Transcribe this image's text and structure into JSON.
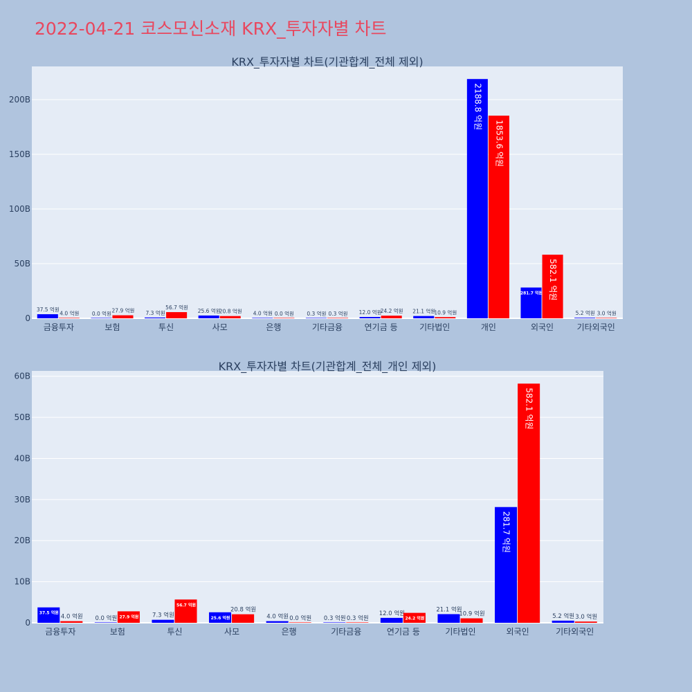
{
  "page": {
    "title": "2022-04-21 코스모신소재 KRX_투자자별 차트"
  },
  "colors": {
    "background": "#b0c4de",
    "plot_bg": "#e5ecf6",
    "series1": "#0000ff",
    "series2": "#ff0000",
    "title": "#e8475e"
  },
  "chart_data": [
    {
      "type": "bar",
      "title": "KRX_투자자별 차트(기관합계_전체 제외)",
      "categories": [
        "금융투자",
        "보험",
        "투신",
        "사모",
        "은행",
        "기타금융",
        "연기금 등",
        "기타법인",
        "개인",
        "외국인",
        "기타외국인"
      ],
      "series": [
        {
          "values": [
            3.75,
            0.0,
            0.73,
            2.56,
            0.4,
            0.03,
            1.2,
            2.11,
            218.88,
            28.17,
            0.52
          ],
          "labels": [
            "37.5 억원",
            "0.0 억원",
            "7.3 억원",
            "25.6 억원",
            "4.0 억원",
            "0.3 억원",
            "12.0 억원",
            "21.1 억원",
            "2188.8 억원",
            "281.7 억원",
            "5.2 억원"
          ]
        },
        {
          "values": [
            0.4,
            2.79,
            5.67,
            2.08,
            0.0,
            0.03,
            2.42,
            1.09,
            185.36,
            58.21,
            0.3
          ],
          "labels": [
            "4.0 억원",
            "27.9 억원",
            "56.7 억원",
            "20.8 억원",
            "0.0 억원",
            "0.3 억원",
            "24.2 억원",
            "10.9 억원",
            "1853.6 억원",
            "582.1 억원",
            "3.0 억원"
          ]
        }
      ],
      "yticks": [
        0,
        50,
        100,
        150,
        200
      ],
      "ytick_labels": [
        "0",
        "50B",
        "100B",
        "150B",
        "200B"
      ],
      "ylim": [
        0,
        230.4
      ],
      "grid": true,
      "inside_labels": [
        [
          8
        ],
        [
          8,
          9
        ]
      ],
      "small_inside_labels": [
        [
          9
        ],
        []
      ]
    },
    {
      "type": "bar",
      "title": "KRX_투자자별 차트(기관합계_전체_개인 제외)",
      "categories": [
        "금융투자",
        "보험",
        "투신",
        "사모",
        "은행",
        "기타금융",
        "연기금 등",
        "기타법인",
        "외국인",
        "기타외국인"
      ],
      "series": [
        {
          "values": [
            3.75,
            0.0,
            0.73,
            2.56,
            0.4,
            0.03,
            1.2,
            2.11,
            28.17,
            0.52
          ],
          "labels": [
            "37.5 억원",
            "0.0 억원",
            "7.3 억원",
            "25.6 억원",
            "4.0 억원",
            "0.3 억원",
            "12.0 억원",
            "21.1 억원",
            "281.7 억원",
            "5.2 억원"
          ]
        },
        {
          "values": [
            0.4,
            2.79,
            5.67,
            2.08,
            0.0,
            0.03,
            2.42,
            1.09,
            58.21,
            0.3
          ],
          "labels": [
            "4.0 억원",
            "27.9 억원",
            "56.7 억원",
            "20.8 억원",
            "0.0 억원",
            "0.3 억원",
            "24.2 억원",
            "10.9 억원",
            "582.1 억원",
            "3.0 억원"
          ]
        }
      ],
      "yticks": [
        0,
        10,
        20,
        30,
        40,
        50,
        60
      ],
      "ytick_labels": [
        "0",
        "10B",
        "20B",
        "30B",
        "40B",
        "50B",
        "60B"
      ],
      "ylim": [
        0,
        61.3
      ],
      "grid": true,
      "inside_labels": [
        [
          8
        ],
        [
          8
        ]
      ],
      "small_inside_labels": [
        [
          0,
          3
        ],
        [
          1,
          2,
          6
        ]
      ]
    }
  ]
}
